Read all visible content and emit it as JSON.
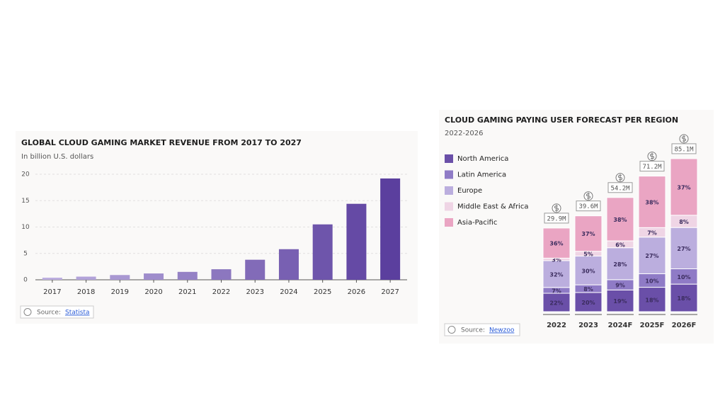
{
  "chart_data": [
    {
      "type": "bar",
      "title": "GLOBAL CLOUD GAMING MARKET REVENUE FROM 2017 TO 2027",
      "subtitle": "In billion U.S. dollars",
      "categories": [
        "2017",
        "2018",
        "2019",
        "2020",
        "2021",
        "2022",
        "2023",
        "2024",
        "2025",
        "2026",
        "2027"
      ],
      "values": [
        0.4,
        0.6,
        0.9,
        1.2,
        1.5,
        2.0,
        3.8,
        5.8,
        10.5,
        14.4,
        19.2
      ],
      "color_range": [
        "#bcaedf",
        "#5b3f9e"
      ],
      "ylim": [
        0,
        20
      ],
      "yticks": [
        0,
        5,
        10,
        15,
        20
      ],
      "grid": true,
      "source_label": "Source:",
      "source": "Statista"
    },
    {
      "type": "stacked_bar",
      "title": "CLOUD GAMING PAYING USER FORECAST PER REGION",
      "subtitle": "2022-2026",
      "categories": [
        "2022",
        "2023",
        "2024F",
        "2025F",
        "2026F"
      ],
      "totals": {
        "values": [
          29.9,
          39.6,
          54.2,
          71.2,
          85.1
        ],
        "value_labels": [
          "29.9M",
          "39.6M",
          "54.2M",
          "71.2M",
          "85.1M"
        ]
      },
      "series": [
        {
          "name": "North America",
          "color": "#6a4fa8",
          "values": [
            22,
            20,
            19,
            18,
            18
          ],
          "value_labels": [
            "22%",
            "20%",
            "19%",
            "18%",
            "18%"
          ]
        },
        {
          "name": "Latin America",
          "color": "#8f7bc6",
          "values": [
            7,
            8,
            9,
            10,
            10
          ],
          "value_labels": [
            "7%",
            "8%",
            "9%",
            "10%",
            "10%"
          ]
        },
        {
          "name": "Europe",
          "color": "#bbaede",
          "values": [
            32,
            30,
            28,
            27,
            27
          ],
          "value_labels": [
            "32%",
            "30%",
            "28%",
            "27%",
            "27%"
          ]
        },
        {
          "name": "Middle East & Africa",
          "color": "#efd5e5",
          "values": [
            3,
            5,
            6,
            7,
            8
          ],
          "value_labels": [
            "3%",
            "5%",
            "6%",
            "7%",
            "8%"
          ]
        },
        {
          "name": "Asia-Pacific",
          "color": "#eaa5c3",
          "values": [
            36,
            37,
            38,
            38,
            37
          ],
          "value_labels": [
            "36%",
            "37%",
            "38%",
            "38%",
            "37%"
          ]
        }
      ],
      "legend": "left",
      "source_label": "Source:",
      "source": "Newzoo"
    }
  ]
}
